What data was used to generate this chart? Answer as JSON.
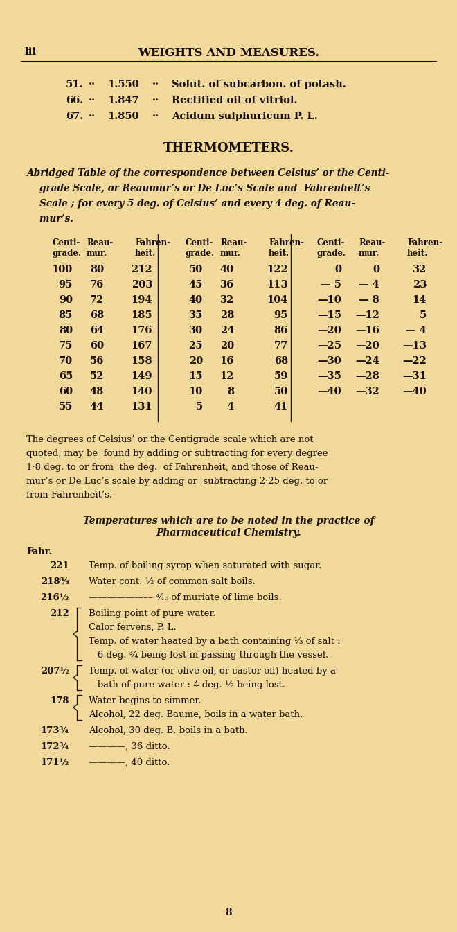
{
  "bg_color": "#f0d99a",
  "text_color": "#1a0e06",
  "page_width": 6.6,
  "page_height": 13.45,
  "header_left": "lii",
  "header_center": "WEIGHTS AND MEASURES.",
  "items_top": [
    {
      "num": "51.",
      "val": "1.550",
      "desc": "Solut. of subcarbon. of potash."
    },
    {
      "num": "66.",
      "val": "1.847",
      "desc": "Rectified oil of vitriol."
    },
    {
      "num": "67.",
      "val": "1.850",
      "desc": "Acidum sulphuricum P. L."
    }
  ],
  "thermo_title": "THERMOMETERS.",
  "abridged_lines": [
    "Abridged Table of the correspondence between Celsius’ or the Centi-",
    "    grade Scale, or Reaumur’s or De Luc’s Scale and  Fahrenheit’s",
    "    Scale ; for every 5 deg. of Celsius’ and every 4 deg. of Reau-",
    "    mur’s."
  ],
  "table_col1": [
    [
      "100",
      "80",
      "212"
    ],
    [
      "95",
      "76",
      "203"
    ],
    [
      "90",
      "72",
      "194"
    ],
    [
      "85",
      "68",
      "185"
    ],
    [
      "80",
      "64",
      "176"
    ],
    [
      "75",
      "60",
      "167"
    ],
    [
      "70",
      "56",
      "158"
    ],
    [
      "65",
      "52",
      "149"
    ],
    [
      "60",
      "48",
      "140"
    ],
    [
      "55",
      "44",
      "131"
    ]
  ],
  "table_col2": [
    [
      "50",
      "40",
      "122"
    ],
    [
      "45",
      "36",
      "113"
    ],
    [
      "40",
      "32",
      "104"
    ],
    [
      "35",
      "28",
      "95"
    ],
    [
      "30",
      "24",
      "86"
    ],
    [
      "25",
      "20",
      "77"
    ],
    [
      "20",
      "16",
      "68"
    ],
    [
      "15",
      "12",
      "59"
    ],
    [
      "10",
      "8",
      "50"
    ],
    [
      "5",
      "4",
      "41"
    ]
  ],
  "table_col3": [
    [
      "0",
      "0",
      "32"
    ],
    [
      "— 5",
      "— 4",
      "23"
    ],
    [
      "—10",
      "— 8",
      "14"
    ],
    [
      "—15",
      "—12",
      "5"
    ],
    [
      "—20",
      "—16",
      "— 4"
    ],
    [
      "—25",
      "—20",
      "—13"
    ],
    [
      "—30",
      "—24",
      "—22"
    ],
    [
      "—35",
      "—28",
      "—31"
    ],
    [
      "—40",
      "—32",
      "—40"
    ],
    [
      "",
      "",
      ""
    ]
  ],
  "para1_lines": [
    "The degrees of Celsius’ or the Centigrade scale which are not",
    "quoted, may be  found by adding or subtracting for every degree",
    "1·8 deg. to or from  the deg.  of Fahrenheit, and those of Reau-",
    "mur’s or De Luc’s scale by adding or  subtracting 2·25 deg. to or",
    "from Fahrenheit’s."
  ],
  "temp_title_line1": "Temperatures which are to be noted in the practice of",
  "temp_title_line2": "Pharmaceutical Chemistry.",
  "fahr_label": "Fahr.",
  "entries": [
    {
      "temp": "221",
      "lines": [
        "Temp. of boiling syrop when saturated with sugar."
      ],
      "bracket": "none"
    },
    {
      "temp": "218¾",
      "lines": [
        "Water cont. ½ of common salt boils."
      ],
      "bracket": "none"
    },
    {
      "temp": "216½",
      "lines": [
        "——————–– ⁴⁄₁₀ of muriate of lime boils."
      ],
      "bracket": "none"
    },
    {
      "temp": "212",
      "lines": [
        "Boiling point of pure water.",
        "Calor fervens, P. L.",
        "Temp. of water heated by a bath containing ⅓ of salt :",
        "   6 deg. ¾ being lost in passing through the vessel."
      ],
      "bracket": "big"
    },
    {
      "temp": "207½",
      "lines": [
        "Temp. of water (or olive oil, or castor oil) heated by a",
        "   bath of pure water : 4 deg. ½ being lost."
      ],
      "bracket": "med"
    },
    {
      "temp": "178",
      "lines": [
        "Water begins to simmer.",
        "Alcohol, 22 deg. Baume, boils in a water bath."
      ],
      "bracket": "sml"
    },
    {
      "temp": "173¾",
      "lines": [
        "Alcohol, 30 deg. B. boils in a bath."
      ],
      "bracket": "none"
    },
    {
      "temp": "172¾",
      "lines": [
        "————, 36 ditto."
      ],
      "bracket": "none"
    },
    {
      "temp": "171½",
      "lines": [
        "————, 40 ditto."
      ],
      "bracket": "none"
    }
  ],
  "page_number": "8"
}
